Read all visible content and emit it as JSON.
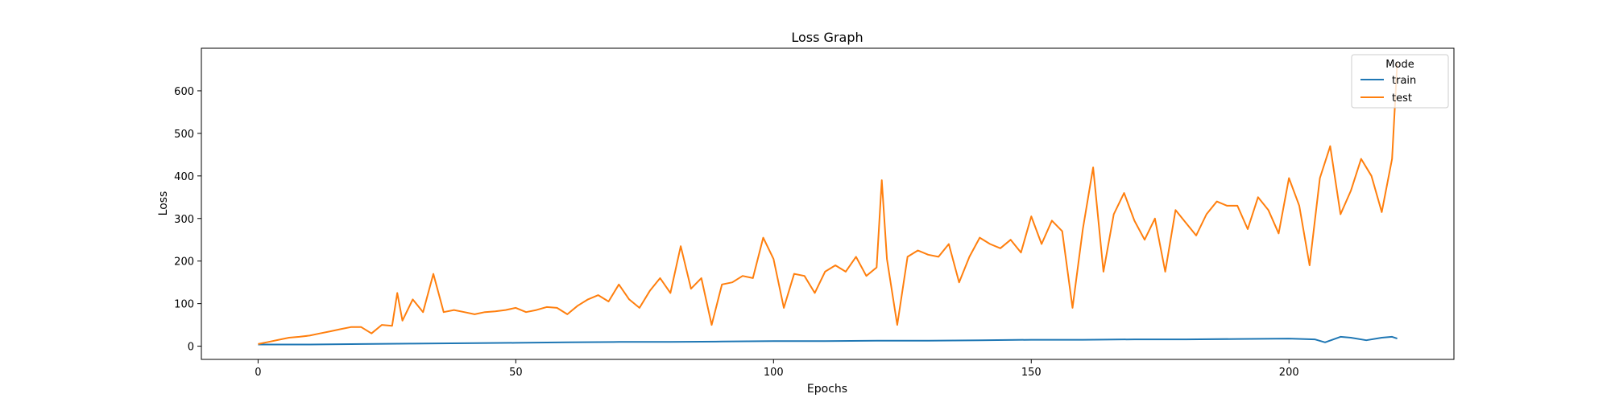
{
  "chart_data": {
    "type": "line",
    "title": "Loss Graph",
    "xlabel": "Epochs",
    "ylabel": "Loss",
    "xlim": [
      -11,
      232
    ],
    "ylim": [
      -31,
      700
    ],
    "xticks": [
      0,
      50,
      100,
      150,
      200
    ],
    "yticks": [
      0,
      100,
      200,
      300,
      400,
      500,
      600
    ],
    "grid": false,
    "legend": {
      "title": "Mode",
      "placement": "top-right"
    },
    "series": [
      {
        "name": "train",
        "color": "#1f77b4",
        "x": [
          0,
          10,
          20,
          30,
          40,
          50,
          60,
          70,
          80,
          90,
          100,
          110,
          120,
          130,
          140,
          150,
          160,
          170,
          180,
          190,
          200,
          205,
          207,
          210,
          212,
          215,
          218,
          220,
          221
        ],
        "values": [
          4,
          4,
          5,
          6,
          7,
          8,
          9,
          10,
          10,
          11,
          12,
          12,
          13,
          13,
          14,
          15,
          15,
          16,
          16,
          17,
          18,
          16,
          9,
          22,
          20,
          14,
          20,
          22,
          18
        ]
      },
      {
        "name": "test",
        "color": "#ff7f0e",
        "x": [
          0,
          2,
          4,
          6,
          8,
          10,
          12,
          14,
          16,
          18,
          20,
          22,
          24,
          26,
          27,
          28,
          30,
          32,
          34,
          36,
          38,
          40,
          42,
          44,
          46,
          48,
          50,
          52,
          54,
          56,
          58,
          60,
          62,
          64,
          66,
          68,
          70,
          72,
          74,
          76,
          78,
          80,
          82,
          84,
          86,
          88,
          90,
          92,
          94,
          96,
          98,
          100,
          102,
          104,
          106,
          108,
          110,
          112,
          114,
          116,
          118,
          120,
          121,
          122,
          124,
          126,
          128,
          130,
          132,
          134,
          136,
          138,
          140,
          142,
          144,
          146,
          148,
          150,
          152,
          154,
          156,
          158,
          160,
          162,
          164,
          166,
          168,
          170,
          172,
          174,
          176,
          178,
          180,
          182,
          184,
          186,
          188,
          190,
          192,
          194,
          196,
          198,
          200,
          202,
          204,
          206,
          208,
          210,
          212,
          214,
          215,
          216,
          218,
          220,
          221
        ],
        "values": [
          5,
          10,
          15,
          20,
          22,
          25,
          30,
          35,
          40,
          45,
          45,
          30,
          50,
          48,
          125,
          60,
          110,
          80,
          170,
          80,
          85,
          80,
          75,
          80,
          82,
          85,
          90,
          80,
          85,
          92,
          90,
          75,
          95,
          110,
          120,
          105,
          145,
          110,
          90,
          130,
          160,
          125,
          235,
          135,
          160,
          50,
          145,
          150,
          165,
          160,
          255,
          205,
          90,
          170,
          165,
          125,
          175,
          190,
          175,
          210,
          165,
          185,
          390,
          205,
          50,
          210,
          225,
          215,
          210,
          240,
          150,
          210,
          255,
          240,
          230,
          250,
          220,
          305,
          240,
          295,
          270,
          90,
          275,
          420,
          175,
          310,
          360,
          295,
          250,
          300,
          175,
          320,
          290,
          260,
          310,
          340,
          330,
          330,
          275,
          350,
          320,
          265,
          395,
          330,
          190,
          395,
          470,
          310,
          365,
          440,
          420,
          400,
          315,
          440,
          665
        ]
      }
    ]
  }
}
